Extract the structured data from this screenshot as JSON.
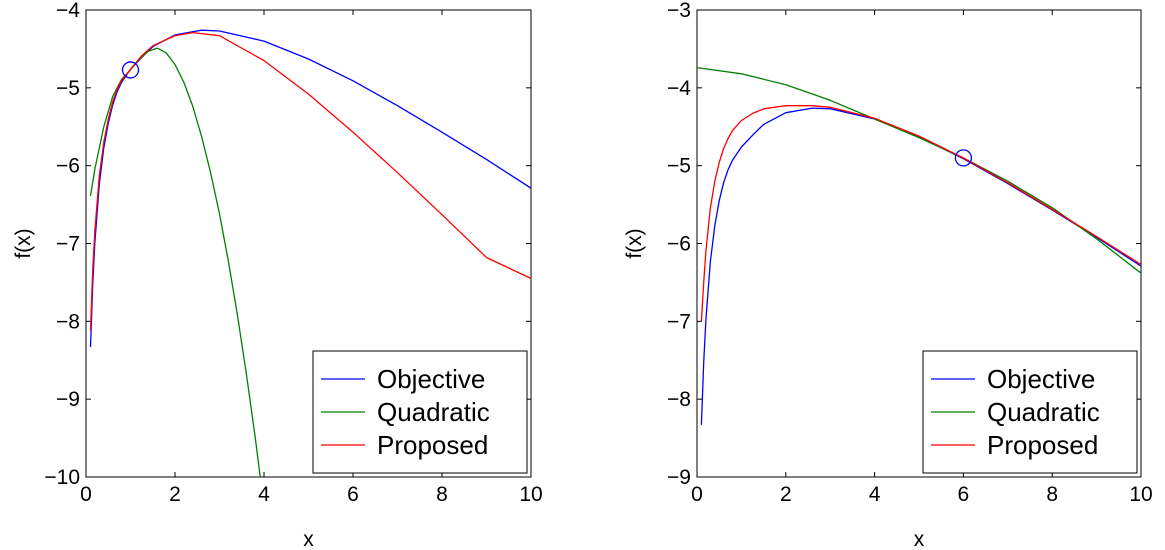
{
  "chart_data": [
    {
      "type": "line",
      "xlabel": "x",
      "ylabel": "f(x)",
      "xlim": [
        0,
        10
      ],
      "ylim": [
        -10,
        -4
      ],
      "xticks": [
        0,
        2,
        4,
        6,
        8,
        10
      ],
      "yticks": [
        -10,
        -9,
        -8,
        -7,
        -6,
        -5,
        -4
      ],
      "grid": false,
      "legend_position": "bottom-right",
      "series": [
        {
          "name": "Objective",
          "color": "#0000ff",
          "x": [
            0.1,
            0.15,
            0.2,
            0.3,
            0.4,
            0.5,
            0.6,
            0.7,
            0.8,
            1.0,
            1.25,
            1.5,
            2.0,
            2.6,
            3.0,
            4.0,
            5.0,
            6.0,
            7.0,
            8.0,
            9.0,
            10.0
          ],
          "y": [
            -8.33,
            -7.53,
            -6.98,
            -6.24,
            -5.77,
            -5.45,
            -5.22,
            -5.05,
            -4.93,
            -4.76,
            -4.61,
            -4.47,
            -4.32,
            -4.26,
            -4.27,
            -4.4,
            -4.63,
            -4.91,
            -5.23,
            -5.57,
            -5.92,
            -6.29
          ]
        },
        {
          "name": "Quadratic",
          "color": "#008000",
          "x": [
            0.1,
            0.2,
            0.4,
            0.6,
            0.8,
            1.0,
            1.2,
            1.4,
            1.6,
            1.8,
            2.0,
            2.2,
            2.4,
            2.6,
            2.8,
            3.0,
            3.2,
            3.4,
            3.6,
            3.8,
            4.0,
            4.1
          ],
          "y": [
            -6.39,
            -6.04,
            -5.5,
            -5.11,
            -4.89,
            -4.77,
            -4.63,
            -4.53,
            -4.49,
            -4.55,
            -4.7,
            -4.93,
            -5.24,
            -5.63,
            -6.09,
            -6.62,
            -7.23,
            -7.91,
            -8.66,
            -9.48,
            -10.38,
            -10.86
          ]
        },
        {
          "name": "Proposed",
          "color": "#ff0000",
          "x": [
            0.1,
            0.15,
            0.2,
            0.3,
            0.4,
            0.5,
            0.6,
            0.7,
            0.8,
            1.0,
            1.25,
            1.5,
            2.0,
            2.4,
            3.0,
            4.0,
            5.0,
            6.0,
            7.0,
            8.0,
            9.0,
            10.0
          ],
          "y": [
            -8.12,
            -7.35,
            -6.83,
            -6.13,
            -5.7,
            -5.4,
            -5.18,
            -5.02,
            -4.91,
            -4.76,
            -4.59,
            -4.46,
            -4.33,
            -4.29,
            -4.33,
            -4.65,
            -5.08,
            -5.57,
            -6.09,
            -6.63,
            -7.18,
            -7.45
          ]
        }
      ],
      "markers": [
        {
          "x": 1.0,
          "y": -4.77,
          "shape": "circle",
          "color": "#0000ff"
        }
      ]
    },
    {
      "type": "line",
      "xlabel": "x",
      "ylabel": "f(x)",
      "xlim": [
        0,
        10
      ],
      "ylim": [
        -9,
        -3
      ],
      "xticks": [
        0,
        2,
        4,
        6,
        8,
        10
      ],
      "yticks": [
        -9,
        -8,
        -7,
        -6,
        -5,
        -4,
        -3
      ],
      "grid": false,
      "legend_position": "bottom-right",
      "series": [
        {
          "name": "Objective",
          "color": "#0000ff",
          "x": [
            0.1,
            0.15,
            0.2,
            0.3,
            0.4,
            0.5,
            0.6,
            0.7,
            0.8,
            1.0,
            1.25,
            1.5,
            2.0,
            2.6,
            3.0,
            4.0,
            5.0,
            6.0,
            7.0,
            8.0,
            9.0,
            10.0
          ],
          "y": [
            -8.33,
            -7.53,
            -6.98,
            -6.24,
            -5.77,
            -5.45,
            -5.22,
            -5.05,
            -4.93,
            -4.76,
            -4.61,
            -4.47,
            -4.32,
            -4.26,
            -4.27,
            -4.4,
            -4.63,
            -4.91,
            -5.23,
            -5.57,
            -5.92,
            -6.29
          ]
        },
        {
          "name": "Quadratic",
          "color": "#008000",
          "x": [
            0.0,
            1.0,
            2.0,
            3.0,
            4.0,
            5.0,
            6.0,
            7.0,
            8.0,
            9.0,
            10.0
          ],
          "y": [
            -3.74,
            -3.82,
            -3.96,
            -4.16,
            -4.4,
            -4.64,
            -4.9,
            -5.2,
            -5.54,
            -5.94,
            -6.38
          ]
        },
        {
          "name": "Proposed",
          "color": "#ff0000",
          "x": [
            0.1,
            0.15,
            0.2,
            0.3,
            0.4,
            0.5,
            0.6,
            0.7,
            0.8,
            1.0,
            1.25,
            1.5,
            2.0,
            2.6,
            3.0,
            4.0,
            5.0,
            6.0,
            7.0,
            8.0,
            9.0,
            10.0
          ],
          "y": [
            -7.0,
            -6.5,
            -6.1,
            -5.55,
            -5.2,
            -4.96,
            -4.78,
            -4.65,
            -4.55,
            -4.42,
            -4.33,
            -4.27,
            -4.23,
            -4.23,
            -4.25,
            -4.39,
            -4.62,
            -4.9,
            -5.22,
            -5.56,
            -5.91,
            -6.27
          ]
        }
      ],
      "markers": [
        {
          "x": 6.0,
          "y": -4.9,
          "shape": "circle",
          "color": "#0000ff"
        }
      ]
    }
  ]
}
